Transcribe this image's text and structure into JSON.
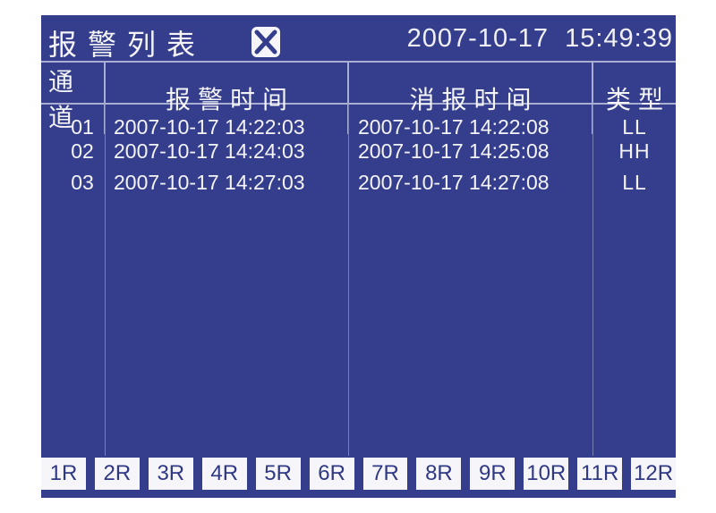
{
  "window": {
    "title": "报警列表",
    "timestamp": "2007-10-17  15:49:39"
  },
  "table": {
    "columns": [
      {
        "label": "通道"
      },
      {
        "label": "报警时间"
      },
      {
        "label": "消报时间"
      },
      {
        "label": "类型"
      }
    ],
    "rows": [
      {
        "channel": "01",
        "alarm_time": "2007-10-17 14:22:03",
        "clear_time": "2007-10-17 14:22:08",
        "type": "LL"
      },
      {
        "channel": "02",
        "alarm_time": "2007-10-17 14:24:03",
        "clear_time": "2007-10-17 14:25:08",
        "type": "HH"
      },
      {
        "channel": "03",
        "alarm_time": "2007-10-17 14:27:03",
        "clear_time": "2007-10-17 14:27:08",
        "type": "LL"
      }
    ]
  },
  "buttons": [
    "1R",
    "2R",
    "3R",
    "4R",
    "5R",
    "6R",
    "7R",
    "8R",
    "9R",
    "10R",
    "11R",
    "12R"
  ],
  "icons": {
    "close": "x-box-icon"
  },
  "colors": {
    "panel_bg": "#353e8c",
    "text": "#f4f4f8",
    "line_strong": "#a9afd2",
    "line_faint": "#7880b2",
    "button_bg": "#f6f6fa",
    "button_text": "#2f3885"
  }
}
